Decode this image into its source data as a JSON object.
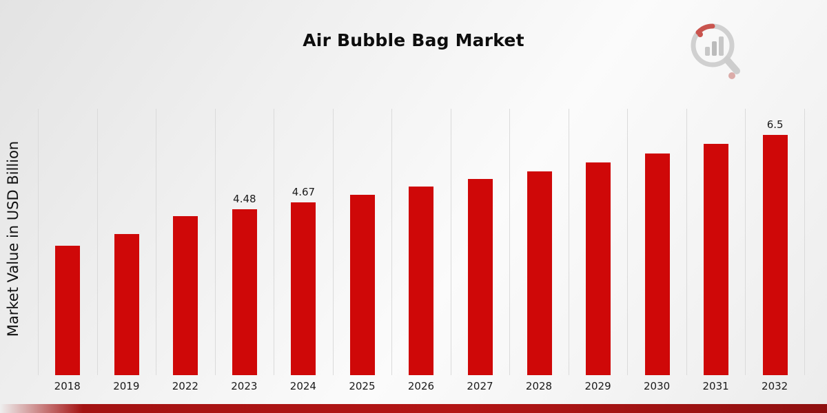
{
  "page": {
    "title": "Air Bubble Bag Market"
  },
  "logo": {
    "name": "market-research-future-watermark"
  },
  "chart_data": {
    "type": "bar",
    "title": "Air Bubble Bag Market",
    "xlabel": "",
    "ylabel": "Market Value in USD Billion",
    "categories": [
      "2018",
      "2019",
      "2022",
      "2023",
      "2024",
      "2025",
      "2026",
      "2027",
      "2028",
      "2029",
      "2030",
      "2031",
      "2032"
    ],
    "values": [
      3.5,
      3.81,
      4.3,
      4.48,
      4.67,
      4.87,
      5.1,
      5.3,
      5.5,
      5.75,
      6.0,
      6.25,
      6.5
    ],
    "data_labels": [
      "",
      "",
      "",
      "4.48",
      "4.67",
      "",
      "",
      "",
      "",
      "",
      "",
      "",
      "6.5"
    ],
    "bar_color": "#cf0808",
    "ylim": [
      0,
      7.2
    ],
    "grid": "vertical-only",
    "legend": "none"
  },
  "footer": {
    "accent_color": "#a31212"
  }
}
